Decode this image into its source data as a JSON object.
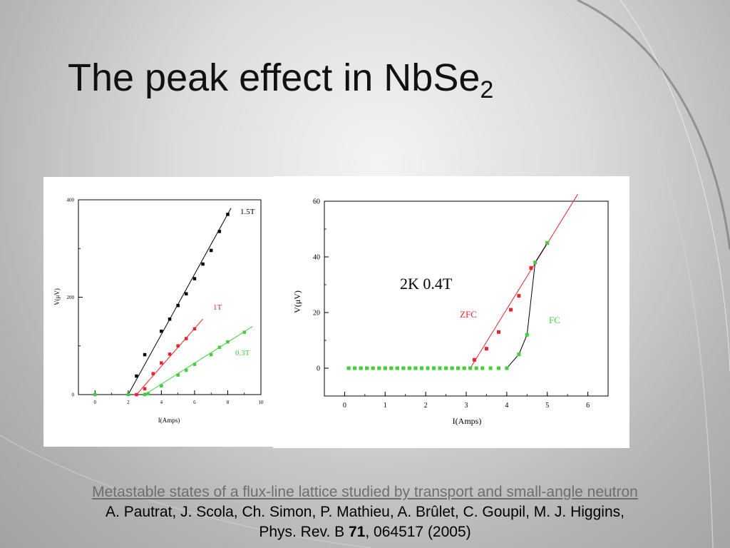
{
  "slide": {
    "title": "The peak effect in NbSe",
    "title_subscript": "2"
  },
  "citation": {
    "link_text": "Metastable states of a flux-line lattice studied by transport and small-angle neutron",
    "authors": "A. Pautrat, J. Scola, Ch. Simon, P. Mathieu, A. Brûlet, C. Goupil, M. J. Higgins,",
    "journal": "Phys. Rev. B",
    "volume": "71",
    "pages_year": ", 064517 (2005)"
  },
  "chart_data": [
    {
      "type": "scatter",
      "xlabel": "I(Amps)",
      "ylabel": "V(μV)",
      "xlim": [
        -1,
        10
      ],
      "ylim": [
        0,
        400
      ],
      "xticks": [
        0,
        2,
        4,
        6,
        8,
        10
      ],
      "yticks": [
        0,
        200,
        400
      ],
      "series": [
        {
          "name": "1.5T",
          "color": "#000000",
          "points": [
            [
              2.5,
              38
            ],
            [
              3.0,
              82
            ],
            [
              4.0,
              130
            ],
            [
              4.5,
              155
            ],
            [
              5.0,
              183
            ],
            [
              5.5,
              207
            ],
            [
              6.0,
              238
            ],
            [
              6.5,
              268
            ],
            [
              7.0,
              296
            ],
            [
              7.5,
              335
            ],
            [
              8.0,
              370
            ]
          ],
          "fit": [
            [
              2.0,
              0
            ],
            [
              8.2,
              383
            ]
          ]
        },
        {
          "name": "1T",
          "color": "#e8242a",
          "points": [
            [
              2.5,
              0
            ],
            [
              3.0,
              12
            ],
            [
              3.5,
              43
            ],
            [
              4.0,
              65
            ],
            [
              4.5,
              83
            ],
            [
              5.0,
              100
            ],
            [
              5.5,
              115
            ],
            [
              6.0,
              135
            ]
          ],
          "fit": [
            [
              2.5,
              0
            ],
            [
              6.5,
              155
            ]
          ]
        },
        {
          "name": "0.3T",
          "color": "#3fd03a",
          "points": [
            [
              0.0,
              0
            ],
            [
              2.0,
              0
            ],
            [
              3.0,
              0
            ],
            [
              3.2,
              2
            ],
            [
              4.0,
              18
            ],
            [
              5.0,
              40
            ],
            [
              5.5,
              50
            ],
            [
              6.0,
              62
            ],
            [
              7.0,
              82
            ],
            [
              7.5,
              97
            ],
            [
              8.0,
              108
            ],
            [
              9.0,
              128
            ]
          ],
          "fit": [
            [
              3.0,
              0
            ],
            [
              9.5,
              140
            ]
          ]
        }
      ]
    },
    {
      "type": "scatter",
      "annotation": "2K 0.4T",
      "xlabel": "I(Amps)",
      "ylabel": "V(μV)",
      "xlim": [
        -0.5,
        6.5
      ],
      "ylim": [
        -10,
        60
      ],
      "xticks": [
        0,
        1,
        2,
        3,
        4,
        5,
        6
      ],
      "yticks": [
        0,
        20,
        40,
        60
      ],
      "series": [
        {
          "name": "ZFC",
          "color": "#e8242a",
          "points": [
            [
              0.1,
              0
            ],
            [
              0.25,
              0
            ],
            [
              0.4,
              0
            ],
            [
              0.55,
              0
            ],
            [
              0.7,
              0
            ],
            [
              0.85,
              0
            ],
            [
              1.0,
              0
            ],
            [
              1.15,
              0
            ],
            [
              1.3,
              0
            ],
            [
              1.45,
              0
            ],
            [
              1.6,
              0
            ],
            [
              1.75,
              0
            ],
            [
              1.9,
              0
            ],
            [
              2.05,
              0
            ],
            [
              2.2,
              0
            ],
            [
              2.35,
              0
            ],
            [
              2.5,
              0
            ],
            [
              2.65,
              0
            ],
            [
              2.8,
              0
            ],
            [
              2.95,
              0
            ],
            [
              3.1,
              0
            ],
            [
              3.2,
              3
            ],
            [
              3.5,
              7
            ],
            [
              3.8,
              13
            ],
            [
              4.1,
              21
            ],
            [
              4.3,
              26
            ],
            [
              4.6,
              36
            ],
            [
              5.0,
              45
            ]
          ],
          "fit": [
            [
              3.1,
              0
            ],
            [
              5.75,
              62.5
            ]
          ]
        },
        {
          "name": "FC",
          "color": "#3fd03a",
          "points": [
            [
              0.1,
              0
            ],
            [
              0.25,
              0
            ],
            [
              0.4,
              0
            ],
            [
              0.55,
              0
            ],
            [
              0.7,
              0
            ],
            [
              0.85,
              0
            ],
            [
              1.0,
              0
            ],
            [
              1.15,
              0
            ],
            [
              1.3,
              0
            ],
            [
              1.45,
              0
            ],
            [
              1.6,
              0
            ],
            [
              1.75,
              0
            ],
            [
              1.9,
              0
            ],
            [
              2.05,
              0
            ],
            [
              2.2,
              0
            ],
            [
              2.35,
              0
            ],
            [
              2.5,
              0
            ],
            [
              2.65,
              0
            ],
            [
              2.8,
              0
            ],
            [
              2.95,
              0
            ],
            [
              3.1,
              0
            ],
            [
              3.25,
              0
            ],
            [
              3.4,
              0
            ],
            [
              3.6,
              0
            ],
            [
              3.8,
              0
            ],
            [
              4.0,
              0
            ],
            [
              4.3,
              5
            ],
            [
              4.5,
              12
            ],
            [
              4.7,
              38
            ],
            [
              5.0,
              45
            ]
          ],
          "fit": [
            [
              4.0,
              0
            ],
            [
              4.3,
              5
            ],
            [
              4.5,
              12
            ],
            [
              4.7,
              38
            ],
            [
              5.0,
              45
            ]
          ]
        }
      ]
    }
  ]
}
